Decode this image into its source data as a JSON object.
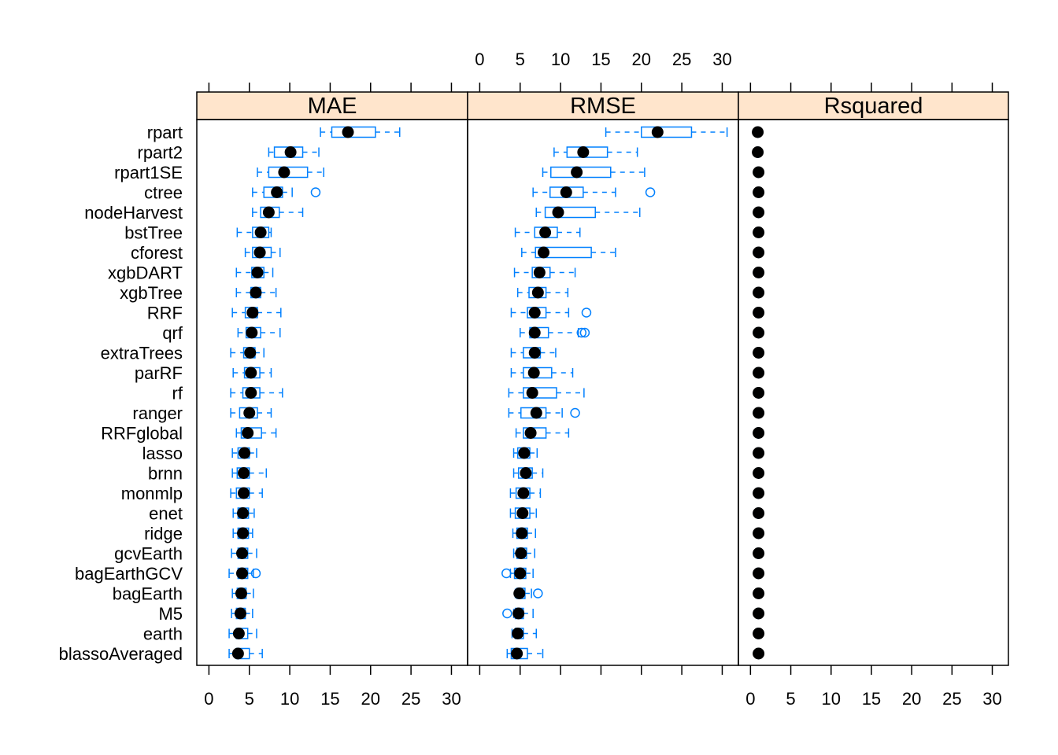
{
  "colors": {
    "strip": "#FFE5CC",
    "box": "#0080FF",
    "median": "#000000",
    "frame": "#000000"
  },
  "chart_data": {
    "type": "box",
    "xlim": [
      -1.5,
      32
    ],
    "xticks": [
      0,
      5,
      10,
      15,
      20,
      25,
      30
    ],
    "categories": [
      "rpart",
      "rpart2",
      "rpart1SE",
      "ctree",
      "nodeHarvest",
      "bstTree",
      "cforest",
      "xgbDART",
      "xgbTree",
      "RRF",
      "qrf",
      "extraTrees",
      "parRF",
      "rf",
      "ranger",
      "RRFglobal",
      "lasso",
      "brnn",
      "monmlp",
      "enet",
      "ridge",
      "gcvEarth",
      "bagEarthGCV",
      "bagEarth",
      "M5",
      "earth",
      "blassoAveraged"
    ],
    "panels": [
      {
        "name": "MAE",
        "boxes": [
          {
            "wmin": 13.8,
            "q1": 15.2,
            "median": 17.2,
            "q3": 20.6,
            "wmax": 23.6,
            "outliers": []
          },
          {
            "wmin": 7.4,
            "q1": 8.1,
            "median": 10.1,
            "q3": 11.6,
            "wmax": 13.6,
            "outliers": []
          },
          {
            "wmin": 6.0,
            "q1": 7.4,
            "median": 9.3,
            "q3": 12.2,
            "wmax": 14.2,
            "outliers": []
          },
          {
            "wmin": 5.4,
            "q1": 6.8,
            "median": 8.4,
            "q3": 9.1,
            "wmax": 10.3,
            "outliers": [
              13.2
            ]
          },
          {
            "wmin": 5.4,
            "q1": 6.4,
            "median": 7.4,
            "q3": 8.7,
            "wmax": 11.6,
            "outliers": []
          },
          {
            "wmin": 3.5,
            "q1": 5.4,
            "median": 6.4,
            "q3": 7.4,
            "wmax": 7.7,
            "outliers": []
          },
          {
            "wmin": 4.5,
            "q1": 5.4,
            "median": 6.3,
            "q3": 7.7,
            "wmax": 8.8,
            "outliers": []
          },
          {
            "wmin": 3.4,
            "q1": 5.3,
            "median": 6.0,
            "q3": 6.8,
            "wmax": 7.9,
            "outliers": []
          },
          {
            "wmin": 3.4,
            "q1": 5.2,
            "median": 5.8,
            "q3": 6.4,
            "wmax": 8.3,
            "outliers": []
          },
          {
            "wmin": 2.9,
            "q1": 4.5,
            "median": 5.4,
            "q3": 6.0,
            "wmax": 8.9,
            "outliers": []
          },
          {
            "wmin": 3.6,
            "q1": 4.6,
            "median": 5.3,
            "q3": 6.4,
            "wmax": 8.8,
            "outliers": []
          },
          {
            "wmin": 2.7,
            "q1": 4.3,
            "median": 5.1,
            "q3": 5.7,
            "wmax": 6.8,
            "outliers": []
          },
          {
            "wmin": 3.0,
            "q1": 4.4,
            "median": 5.2,
            "q3": 6.3,
            "wmax": 7.7,
            "outliers": []
          },
          {
            "wmin": 2.7,
            "q1": 4.2,
            "median": 5.2,
            "q3": 6.3,
            "wmax": 9.1,
            "outliers": []
          },
          {
            "wmin": 2.7,
            "q1": 3.8,
            "median": 5.0,
            "q3": 6.0,
            "wmax": 7.7,
            "outliers": []
          },
          {
            "wmin": 3.4,
            "q1": 4.0,
            "median": 4.8,
            "q3": 6.5,
            "wmax": 8.3,
            "outliers": []
          },
          {
            "wmin": 2.9,
            "q1": 3.6,
            "median": 4.4,
            "q3": 5.0,
            "wmax": 5.9,
            "outliers": []
          },
          {
            "wmin": 2.9,
            "q1": 3.5,
            "median": 4.3,
            "q3": 5.0,
            "wmax": 7.1,
            "outliers": []
          },
          {
            "wmin": 2.7,
            "q1": 3.4,
            "median": 4.3,
            "q3": 5.0,
            "wmax": 6.6,
            "outliers": []
          },
          {
            "wmin": 3.0,
            "q1": 3.6,
            "median": 4.2,
            "q3": 4.9,
            "wmax": 5.6,
            "outliers": []
          },
          {
            "wmin": 3.0,
            "q1": 3.6,
            "median": 4.2,
            "q3": 4.9,
            "wmax": 5.4,
            "outliers": []
          },
          {
            "wmin": 2.8,
            "q1": 3.6,
            "median": 4.1,
            "q3": 4.8,
            "wmax": 5.9,
            "outliers": []
          },
          {
            "wmin": 2.5,
            "q1": 3.6,
            "median": 4.1,
            "q3": 4.8,
            "wmax": 5.5,
            "outliers": [
              5.8
            ]
          },
          {
            "wmin": 2.9,
            "q1": 3.5,
            "median": 4.0,
            "q3": 4.6,
            "wmax": 5.5,
            "outliers": []
          },
          {
            "wmin": 2.8,
            "q1": 3.4,
            "median": 3.9,
            "q3": 4.5,
            "wmax": 5.4,
            "outliers": []
          },
          {
            "wmin": 2.5,
            "q1": 3.4,
            "median": 3.7,
            "q3": 4.8,
            "wmax": 5.9,
            "outliers": []
          },
          {
            "wmin": 2.5,
            "q1": 3.4,
            "median": 3.6,
            "q3": 5.0,
            "wmax": 6.6,
            "outliers": []
          }
        ]
      },
      {
        "name": "RMSE",
        "boxes": [
          {
            "wmin": 15.6,
            "q1": 20.0,
            "median": 22.0,
            "q3": 26.2,
            "wmax": 30.6,
            "outliers": []
          },
          {
            "wmin": 9.2,
            "q1": 10.8,
            "median": 12.8,
            "q3": 15.8,
            "wmax": 19.5,
            "outliers": []
          },
          {
            "wmin": 7.8,
            "q1": 8.8,
            "median": 12.0,
            "q3": 16.2,
            "wmax": 20.4,
            "outliers": []
          },
          {
            "wmin": 6.6,
            "q1": 8.7,
            "median": 10.7,
            "q3": 12.8,
            "wmax": 16.8,
            "outliers": [
              21.1
            ]
          },
          {
            "wmin": 7.0,
            "q1": 8.1,
            "median": 9.7,
            "q3": 14.3,
            "wmax": 19.8,
            "outliers": []
          },
          {
            "wmin": 4.4,
            "q1": 6.8,
            "median": 8.1,
            "q3": 9.6,
            "wmax": 12.4,
            "outliers": []
          },
          {
            "wmin": 5.2,
            "q1": 6.9,
            "median": 7.9,
            "q3": 13.8,
            "wmax": 16.8,
            "outliers": []
          },
          {
            "wmin": 4.3,
            "q1": 6.5,
            "median": 7.4,
            "q3": 8.7,
            "wmax": 11.8,
            "outliers": []
          },
          {
            "wmin": 4.7,
            "q1": 6.1,
            "median": 7.2,
            "q3": 8.2,
            "wmax": 10.9,
            "outliers": []
          },
          {
            "wmin": 3.9,
            "q1": 5.9,
            "median": 6.8,
            "q3": 8.2,
            "wmax": 11.0,
            "outliers": [
              13.2
            ]
          },
          {
            "wmin": 5.0,
            "q1": 6.2,
            "median": 6.8,
            "q3": 8.5,
            "wmax": 12.2,
            "outliers": [
              12.6,
              13.0
            ]
          },
          {
            "wmin": 3.9,
            "q1": 5.4,
            "median": 6.8,
            "q3": 7.5,
            "wmax": 9.4,
            "outliers": []
          },
          {
            "wmin": 3.9,
            "q1": 5.4,
            "median": 6.7,
            "q3": 8.9,
            "wmax": 11.5,
            "outliers": []
          },
          {
            "wmin": 3.6,
            "q1": 5.4,
            "median": 6.5,
            "q3": 9.5,
            "wmax": 12.9,
            "outliers": []
          },
          {
            "wmin": 3.6,
            "q1": 5.1,
            "median": 7.0,
            "q3": 8.2,
            "wmax": 10.2,
            "outliers": [
              11.8
            ]
          },
          {
            "wmin": 4.5,
            "q1": 5.4,
            "median": 6.3,
            "q3": 8.2,
            "wmax": 11.0,
            "outliers": []
          },
          {
            "wmin": 4.2,
            "q1": 4.7,
            "median": 5.5,
            "q3": 6.2,
            "wmax": 7.1,
            "outliers": []
          },
          {
            "wmin": 4.2,
            "q1": 4.8,
            "median": 5.7,
            "q3": 6.5,
            "wmax": 7.8,
            "outliers": []
          },
          {
            "wmin": 3.8,
            "q1": 4.5,
            "median": 5.4,
            "q3": 6.2,
            "wmax": 7.5,
            "outliers": []
          },
          {
            "wmin": 3.8,
            "q1": 4.4,
            "median": 5.3,
            "q3": 6.2,
            "wmax": 7.0,
            "outliers": []
          },
          {
            "wmin": 4.1,
            "q1": 4.6,
            "median": 5.2,
            "q3": 5.9,
            "wmax": 6.9,
            "outliers": []
          },
          {
            "wmin": 4.2,
            "q1": 4.6,
            "median": 5.1,
            "q3": 5.8,
            "wmax": 6.8,
            "outliers": []
          },
          {
            "wmin": 3.8,
            "q1": 4.3,
            "median": 5.0,
            "q3": 5.7,
            "wmax": 6.6,
            "outliers": [
              3.3
            ]
          },
          {
            "wmin": 4.4,
            "q1": 4.6,
            "median": 4.9,
            "q3": 5.6,
            "wmax": 6.4,
            "outliers": [
              7.2
            ]
          },
          {
            "wmin": 4.2,
            "q1": 4.4,
            "median": 4.8,
            "q3": 5.4,
            "wmax": 6.6,
            "outliers": [
              3.4
            ]
          },
          {
            "wmin": 4.0,
            "q1": 4.4,
            "median": 4.7,
            "q3": 5.4,
            "wmax": 7.0,
            "outliers": []
          },
          {
            "wmin": 3.4,
            "q1": 3.9,
            "median": 4.6,
            "q3": 5.9,
            "wmax": 7.8,
            "outliers": []
          }
        ]
      },
      {
        "name": "Rsquared",
        "boxes": [
          {
            "wmin": 0.9,
            "q1": 0.9,
            "median": 0.9,
            "q3": 0.9,
            "wmax": 0.9,
            "outliers": []
          },
          {
            "wmin": 0.7,
            "q1": 0.8,
            "median": 0.9,
            "q3": 1.0,
            "wmax": 1.1,
            "outliers": []
          },
          {
            "wmin": 0.9,
            "q1": 0.9,
            "median": 1.0,
            "q3": 1.0,
            "wmax": 1.0,
            "outliers": []
          },
          {
            "wmin": 0.9,
            "q1": 1.0,
            "median": 1.0,
            "q3": 1.0,
            "wmax": 1.0,
            "outliers": []
          },
          {
            "wmin": 0.9,
            "q1": 1.0,
            "median": 1.0,
            "q3": 1.0,
            "wmax": 1.0,
            "outliers": []
          },
          {
            "wmin": 1.0,
            "q1": 1.0,
            "median": 1.0,
            "q3": 1.0,
            "wmax": 1.0,
            "outliers": []
          },
          {
            "wmin": 1.0,
            "q1": 1.0,
            "median": 1.0,
            "q3": 1.0,
            "wmax": 1.0,
            "outliers": []
          },
          {
            "wmin": 1.0,
            "q1": 1.0,
            "median": 1.0,
            "q3": 1.0,
            "wmax": 1.0,
            "outliers": []
          },
          {
            "wmin": 1.0,
            "q1": 1.0,
            "median": 1.0,
            "q3": 1.0,
            "wmax": 1.0,
            "outliers": []
          },
          {
            "wmin": 0.8,
            "q1": 0.9,
            "median": 1.0,
            "q3": 1.0,
            "wmax": 1.2,
            "outliers": []
          },
          {
            "wmin": 1.0,
            "q1": 1.0,
            "median": 1.0,
            "q3": 1.0,
            "wmax": 1.0,
            "outliers": []
          },
          {
            "wmin": 1.0,
            "q1": 1.0,
            "median": 1.0,
            "q3": 1.0,
            "wmax": 1.0,
            "outliers": []
          },
          {
            "wmin": 1.0,
            "q1": 1.0,
            "median": 1.0,
            "q3": 1.0,
            "wmax": 1.0,
            "outliers": []
          },
          {
            "wmin": 1.0,
            "q1": 1.0,
            "median": 1.0,
            "q3": 1.0,
            "wmax": 1.0,
            "outliers": []
          },
          {
            "wmin": 1.0,
            "q1": 1.0,
            "median": 1.0,
            "q3": 1.0,
            "wmax": 1.0,
            "outliers": []
          },
          {
            "wmin": 0.8,
            "q1": 0.9,
            "median": 1.0,
            "q3": 1.0,
            "wmax": 1.2,
            "outliers": []
          },
          {
            "wmin": 0.8,
            "q1": 0.9,
            "median": 1.0,
            "q3": 1.0,
            "wmax": 1.2,
            "outliers": []
          },
          {
            "wmin": 1.0,
            "q1": 1.0,
            "median": 1.0,
            "q3": 1.0,
            "wmax": 1.0,
            "outliers": []
          },
          {
            "wmin": 0.8,
            "q1": 0.9,
            "median": 1.0,
            "q3": 1.0,
            "wmax": 1.2,
            "outliers": []
          },
          {
            "wmin": 0.8,
            "q1": 0.9,
            "median": 1.0,
            "q3": 1.0,
            "wmax": 1.2,
            "outliers": []
          },
          {
            "wmin": 1.0,
            "q1": 1.0,
            "median": 1.0,
            "q3": 1.0,
            "wmax": 1.0,
            "outliers": []
          },
          {
            "wmin": 0.8,
            "q1": 0.9,
            "median": 1.0,
            "q3": 1.0,
            "wmax": 1.2,
            "outliers": []
          },
          {
            "wmin": 0.8,
            "q1": 0.9,
            "median": 1.0,
            "q3": 1.0,
            "wmax": 1.2,
            "outliers": []
          },
          {
            "wmin": 1.0,
            "q1": 1.0,
            "median": 1.0,
            "q3": 1.0,
            "wmax": 1.0,
            "outliers": []
          },
          {
            "wmin": 0.8,
            "q1": 0.9,
            "median": 1.0,
            "q3": 1.0,
            "wmax": 1.2,
            "outliers": []
          },
          {
            "wmin": 0.8,
            "q1": 0.9,
            "median": 1.0,
            "q3": 1.0,
            "wmax": 1.2,
            "outliers": []
          },
          {
            "wmin": 1.0,
            "q1": 1.0,
            "median": 1.0,
            "q3": 1.0,
            "wmax": 1.0,
            "outliers": []
          }
        ]
      }
    ]
  }
}
